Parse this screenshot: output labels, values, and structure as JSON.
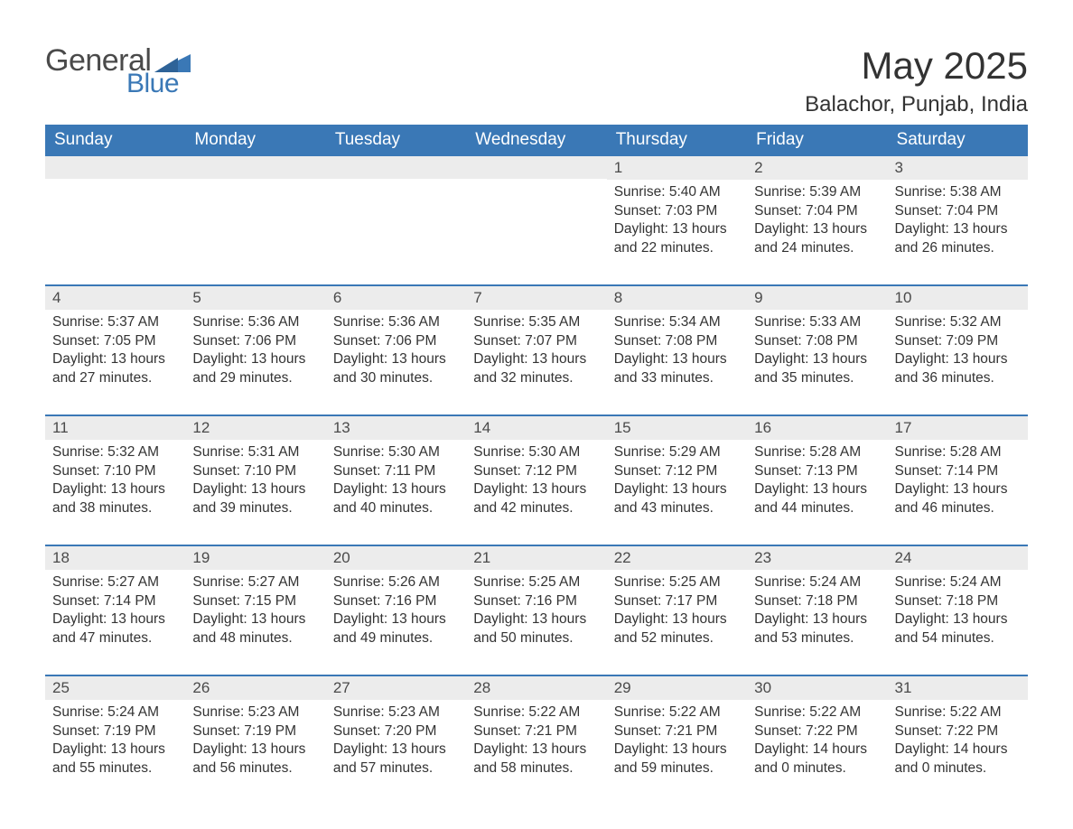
{
  "brand": {
    "general": "General",
    "blue": "Blue"
  },
  "title": "May 2025",
  "location": "Balachor, Punjab, India",
  "colors": {
    "header_bg": "#3a78b6",
    "week_border": "#3a78b6",
    "daynum_bg": "#ececec",
    "text": "#333333",
    "logo_gray": "#4a4a4a",
    "logo_blue": "#3a78b6",
    "page_bg": "#ffffff"
  },
  "weekdays": [
    "Sunday",
    "Monday",
    "Tuesday",
    "Wednesday",
    "Thursday",
    "Friday",
    "Saturday"
  ],
  "weeks": [
    [
      {
        "n": "",
        "sunrise": "",
        "sunset": "",
        "daylight": ""
      },
      {
        "n": "",
        "sunrise": "",
        "sunset": "",
        "daylight": ""
      },
      {
        "n": "",
        "sunrise": "",
        "sunset": "",
        "daylight": ""
      },
      {
        "n": "",
        "sunrise": "",
        "sunset": "",
        "daylight": ""
      },
      {
        "n": "1",
        "sunrise": "Sunrise: 5:40 AM",
        "sunset": "Sunset: 7:03 PM",
        "daylight": "Daylight: 13 hours and 22 minutes."
      },
      {
        "n": "2",
        "sunrise": "Sunrise: 5:39 AM",
        "sunset": "Sunset: 7:04 PM",
        "daylight": "Daylight: 13 hours and 24 minutes."
      },
      {
        "n": "3",
        "sunrise": "Sunrise: 5:38 AM",
        "sunset": "Sunset: 7:04 PM",
        "daylight": "Daylight: 13 hours and 26 minutes."
      }
    ],
    [
      {
        "n": "4",
        "sunrise": "Sunrise: 5:37 AM",
        "sunset": "Sunset: 7:05 PM",
        "daylight": "Daylight: 13 hours and 27 minutes."
      },
      {
        "n": "5",
        "sunrise": "Sunrise: 5:36 AM",
        "sunset": "Sunset: 7:06 PM",
        "daylight": "Daylight: 13 hours and 29 minutes."
      },
      {
        "n": "6",
        "sunrise": "Sunrise: 5:36 AM",
        "sunset": "Sunset: 7:06 PM",
        "daylight": "Daylight: 13 hours and 30 minutes."
      },
      {
        "n": "7",
        "sunrise": "Sunrise: 5:35 AM",
        "sunset": "Sunset: 7:07 PM",
        "daylight": "Daylight: 13 hours and 32 minutes."
      },
      {
        "n": "8",
        "sunrise": "Sunrise: 5:34 AM",
        "sunset": "Sunset: 7:08 PM",
        "daylight": "Daylight: 13 hours and 33 minutes."
      },
      {
        "n": "9",
        "sunrise": "Sunrise: 5:33 AM",
        "sunset": "Sunset: 7:08 PM",
        "daylight": "Daylight: 13 hours and 35 minutes."
      },
      {
        "n": "10",
        "sunrise": "Sunrise: 5:32 AM",
        "sunset": "Sunset: 7:09 PM",
        "daylight": "Daylight: 13 hours and 36 minutes."
      }
    ],
    [
      {
        "n": "11",
        "sunrise": "Sunrise: 5:32 AM",
        "sunset": "Sunset: 7:10 PM",
        "daylight": "Daylight: 13 hours and 38 minutes."
      },
      {
        "n": "12",
        "sunrise": "Sunrise: 5:31 AM",
        "sunset": "Sunset: 7:10 PM",
        "daylight": "Daylight: 13 hours and 39 minutes."
      },
      {
        "n": "13",
        "sunrise": "Sunrise: 5:30 AM",
        "sunset": "Sunset: 7:11 PM",
        "daylight": "Daylight: 13 hours and 40 minutes."
      },
      {
        "n": "14",
        "sunrise": "Sunrise: 5:30 AM",
        "sunset": "Sunset: 7:12 PM",
        "daylight": "Daylight: 13 hours and 42 minutes."
      },
      {
        "n": "15",
        "sunrise": "Sunrise: 5:29 AM",
        "sunset": "Sunset: 7:12 PM",
        "daylight": "Daylight: 13 hours and 43 minutes."
      },
      {
        "n": "16",
        "sunrise": "Sunrise: 5:28 AM",
        "sunset": "Sunset: 7:13 PM",
        "daylight": "Daylight: 13 hours and 44 minutes."
      },
      {
        "n": "17",
        "sunrise": "Sunrise: 5:28 AM",
        "sunset": "Sunset: 7:14 PM",
        "daylight": "Daylight: 13 hours and 46 minutes."
      }
    ],
    [
      {
        "n": "18",
        "sunrise": "Sunrise: 5:27 AM",
        "sunset": "Sunset: 7:14 PM",
        "daylight": "Daylight: 13 hours and 47 minutes."
      },
      {
        "n": "19",
        "sunrise": "Sunrise: 5:27 AM",
        "sunset": "Sunset: 7:15 PM",
        "daylight": "Daylight: 13 hours and 48 minutes."
      },
      {
        "n": "20",
        "sunrise": "Sunrise: 5:26 AM",
        "sunset": "Sunset: 7:16 PM",
        "daylight": "Daylight: 13 hours and 49 minutes."
      },
      {
        "n": "21",
        "sunrise": "Sunrise: 5:25 AM",
        "sunset": "Sunset: 7:16 PM",
        "daylight": "Daylight: 13 hours and 50 minutes."
      },
      {
        "n": "22",
        "sunrise": "Sunrise: 5:25 AM",
        "sunset": "Sunset: 7:17 PM",
        "daylight": "Daylight: 13 hours and 52 minutes."
      },
      {
        "n": "23",
        "sunrise": "Sunrise: 5:24 AM",
        "sunset": "Sunset: 7:18 PM",
        "daylight": "Daylight: 13 hours and 53 minutes."
      },
      {
        "n": "24",
        "sunrise": "Sunrise: 5:24 AM",
        "sunset": "Sunset: 7:18 PM",
        "daylight": "Daylight: 13 hours and 54 minutes."
      }
    ],
    [
      {
        "n": "25",
        "sunrise": "Sunrise: 5:24 AM",
        "sunset": "Sunset: 7:19 PM",
        "daylight": "Daylight: 13 hours and 55 minutes."
      },
      {
        "n": "26",
        "sunrise": "Sunrise: 5:23 AM",
        "sunset": "Sunset: 7:19 PM",
        "daylight": "Daylight: 13 hours and 56 minutes."
      },
      {
        "n": "27",
        "sunrise": "Sunrise: 5:23 AM",
        "sunset": "Sunset: 7:20 PM",
        "daylight": "Daylight: 13 hours and 57 minutes."
      },
      {
        "n": "28",
        "sunrise": "Sunrise: 5:22 AM",
        "sunset": "Sunset: 7:21 PM",
        "daylight": "Daylight: 13 hours and 58 minutes."
      },
      {
        "n": "29",
        "sunrise": "Sunrise: 5:22 AM",
        "sunset": "Sunset: 7:21 PM",
        "daylight": "Daylight: 13 hours and 59 minutes."
      },
      {
        "n": "30",
        "sunrise": "Sunrise: 5:22 AM",
        "sunset": "Sunset: 7:22 PM",
        "daylight": "Daylight: 14 hours and 0 minutes."
      },
      {
        "n": "31",
        "sunrise": "Sunrise: 5:22 AM",
        "sunset": "Sunset: 7:22 PM",
        "daylight": "Daylight: 14 hours and 0 minutes."
      }
    ]
  ]
}
